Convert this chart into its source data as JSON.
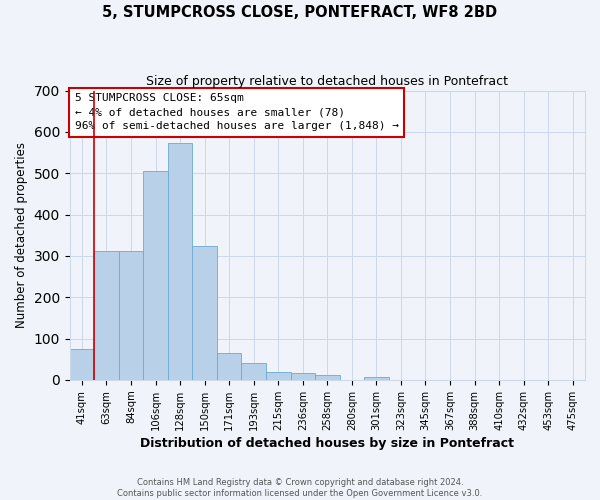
{
  "title": "5, STUMPCROSS CLOSE, PONTEFRACT, WF8 2BD",
  "subtitle": "Size of property relative to detached houses in Pontefract",
  "xlabel": "Distribution of detached houses by size in Pontefract",
  "ylabel": "Number of detached properties",
  "bar_color": "#b8d0e8",
  "bar_edge_color": "#6aaad4",
  "bar_heights": [
    75,
    313,
    313,
    505,
    573,
    325,
    65,
    40,
    20,
    18,
    12,
    0,
    8,
    0,
    0,
    0,
    0,
    0,
    0,
    0,
    0
  ],
  "bar_labels": [
    "41sqm",
    "63sqm",
    "84sqm",
    "106sqm",
    "128sqm",
    "150sqm",
    "171sqm",
    "193sqm",
    "215sqm",
    "236sqm",
    "258sqm",
    "280sqm",
    "301sqm",
    "323sqm",
    "345sqm",
    "367sqm",
    "388sqm",
    "410sqm",
    "432sqm",
    "453sqm",
    "475sqm"
  ],
  "ylim": [
    0,
    700
  ],
  "yticks": [
    0,
    100,
    200,
    300,
    400,
    500,
    600,
    700
  ],
  "vline_x": 1.0,
  "vline_color": "#cc0000",
  "annotation_title": "5 STUMPCROSS CLOSE: 65sqm",
  "annotation_line1": "← 4% of detached houses are smaller (78)",
  "annotation_line2": "96% of semi-detached houses are larger (1,848) →",
  "annotation_box_color": "#ffffff",
  "annotation_box_edge": "#cc0000",
  "footer1": "Contains HM Land Registry data © Crown copyright and database right 2024.",
  "footer2": "Contains public sector information licensed under the Open Government Licence v3.0.",
  "grid_color": "#ccd9e8",
  "background_color": "#f0f4fa"
}
